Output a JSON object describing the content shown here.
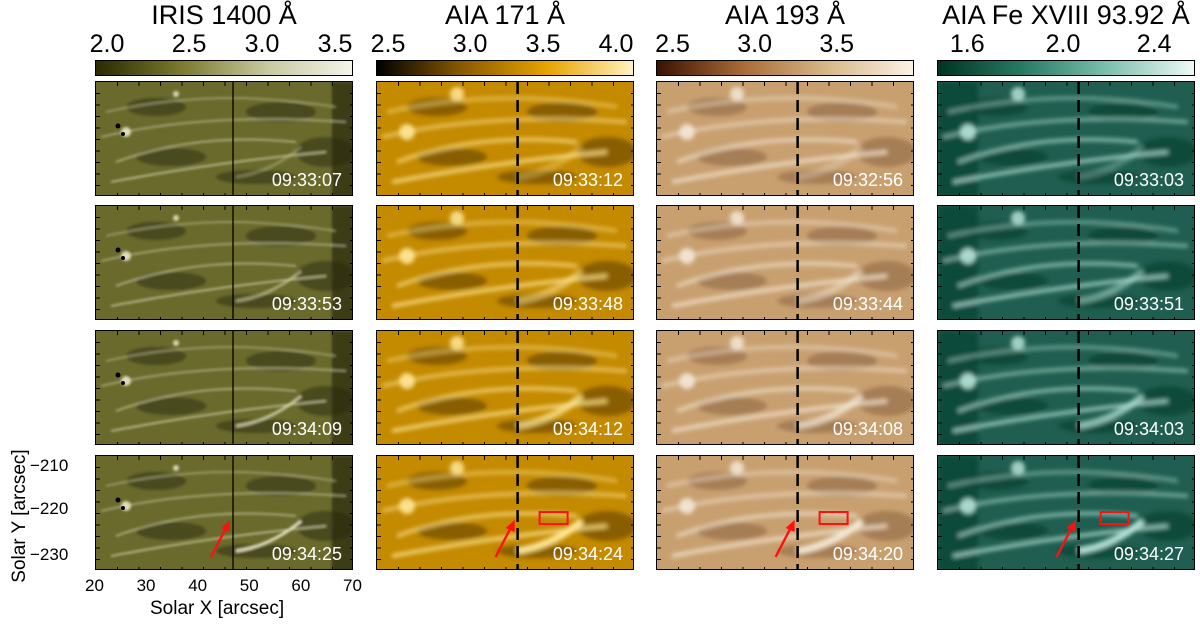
{
  "columns": [
    {
      "title": "IRIS 1400 Å",
      "ticks": [
        "2.0",
        "2.5",
        "3.0",
        "3.5"
      ],
      "cmap": [
        "#2a2a00",
        "#7a7a30",
        "#c8c8a0",
        "#f4f4ea"
      ],
      "base": "#6a6a2c",
      "hi": "#e6e6c8",
      "lo": "#2e2e12"
    },
    {
      "title": "AIA 171 Å",
      "ticks": [
        "2.5",
        "3.0",
        "3.5",
        "4.0"
      ],
      "cmap": [
        "#000000",
        "#8a5a00",
        "#e8a400",
        "#fff2c0"
      ],
      "base": "#c48a00",
      "hi": "#ffe89a",
      "lo": "#5a3a00"
    },
    {
      "title": "AIA 193 Å",
      "ticks": [
        "2.5",
        "3.0",
        "3.5"
      ],
      "cmap": [
        "#3a1200",
        "#a86a38",
        "#d8b888",
        "#fbf2e4"
      ],
      "base": "#c8a070",
      "hi": "#f4e8d6",
      "lo": "#8a6040"
    },
    {
      "title": "AIA Fe XVIII 93.92 Å",
      "ticks": [
        "1.6",
        "2.0",
        "2.4"
      ],
      "cmap": [
        "#003322",
        "#2a7a66",
        "#7ec0b0",
        "#eefaf6"
      ],
      "base": "#1f5e50",
      "hi": "#b6e2d6",
      "lo": "#063a2c"
    }
  ],
  "timestamps": [
    [
      "09:33:07",
      "09:33:12",
      "09:32:56",
      "09:33:03"
    ],
    [
      "09:33:53",
      "09:33:48",
      "09:33:44",
      "09:33:51"
    ],
    [
      "09:34:09",
      "09:34:12",
      "09:34:08",
      "09:34:03"
    ],
    [
      "09:34:25",
      "09:34:24",
      "09:34:20",
      "09:34:27"
    ]
  ],
  "axes": {
    "ylabel": "Solar Y [arcsec]",
    "xlabel": "Solar X [arcsec]",
    "yticks": [
      "−210",
      "−220",
      "−230"
    ],
    "xticks": [
      "20",
      "30",
      "40",
      "50",
      "60",
      "70"
    ]
  }
}
